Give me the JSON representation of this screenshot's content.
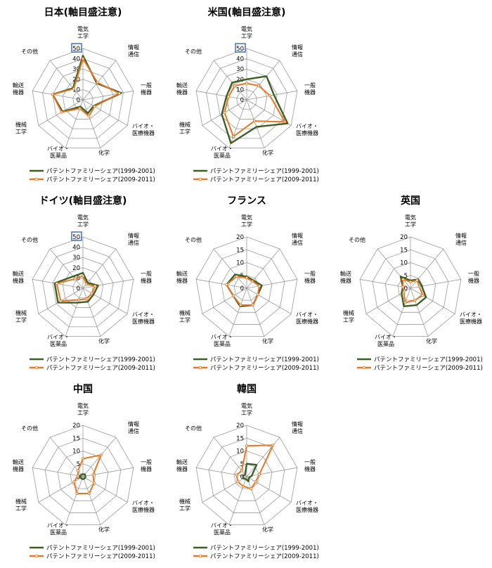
{
  "axis_labels": [
    [
      "電気",
      "工学"
    ],
    [
      "情報",
      "通信"
    ],
    [
      "一般",
      "機器"
    ],
    [
      "バイオ・",
      "医療機器"
    ],
    [
      "化学"
    ],
    [
      "バイオ・",
      "医薬品"
    ],
    [
      "機械",
      "工学"
    ],
    [
      "輸送",
      "機器"
    ],
    [
      "その他"
    ]
  ],
  "legend": [
    "パテントファミリーシェア(1999-2001)",
    "パテントファミリーシェア(2009-2011)"
  ],
  "colors": {
    "series1": "#3d5f25",
    "series2": "#e87722",
    "grid": "#9a9a9a",
    "highlight": "#4472c4"
  },
  "chart_data": [
    {
      "type": "radar",
      "title": "日本(軸目盛注意)",
      "rmax": 50,
      "ticks": [
        "0",
        "10",
        "20",
        "30",
        "40",
        "50"
      ],
      "tick_values": [
        0,
        10,
        20,
        30,
        40,
        50
      ],
      "highlight_max_tick": true,
      "categories": [
        "電気工学",
        "情報通信",
        "一般機器",
        "バイオ・医療機器",
        "化学",
        "バイオ・医薬品",
        "機械工学",
        "輸送機器",
        "その他"
      ],
      "series": [
        {
          "name": "パテントファミリーシェア(1999-2001)",
          "values": [
            43,
            21,
            38,
            12,
            14,
            7,
            23,
            30,
            15
          ]
        },
        {
          "name": "パテントファミリーシェア(2009-2011)",
          "values": [
            40,
            22,
            36,
            13,
            17,
            9,
            24,
            30,
            14
          ]
        }
      ]
    },
    {
      "type": "radar",
      "title": "米国(軸目盛注意)",
      "rmax": 50,
      "ticks": [
        "0",
        "10",
        "20",
        "30",
        "40",
        "50"
      ],
      "tick_values": [
        0,
        10,
        20,
        30,
        40,
        50
      ],
      "highlight_max_tick": true,
      "categories": [
        "電気工学",
        "情報通信",
        "一般機器",
        "バイオ・医療機器",
        "化学",
        "バイオ・医薬品",
        "機械工学",
        "輸送機器",
        "その他"
      ],
      "series": [
        {
          "name": "パテントファミリーシェア(1999-2001)",
          "values": [
            20,
            30,
            27,
            46,
            28,
            45,
            28,
            20,
            22
          ]
        },
        {
          "name": "パテントファミリーシェア(2009-2011)",
          "values": [
            16,
            18,
            23,
            43,
            22,
            38,
            25,
            18,
            18
          ]
        }
      ]
    },
    {
      "type": "radar",
      "title": "ドイツ(軸目盛注意)",
      "rmax": 50,
      "ticks": [
        "0",
        "10",
        "20",
        "30",
        "40",
        "50"
      ],
      "tick_values": [
        0,
        10,
        20,
        30,
        40,
        50
      ],
      "highlight_max_tick": true,
      "categories": [
        "電気工学",
        "情報通信",
        "一般機器",
        "バイオ・医療機器",
        "化学",
        "バイオ・医薬品",
        "機械工学",
        "輸送機器",
        "その他"
      ],
      "series": [
        {
          "name": "パテントファミリーシェア(1999-2001)",
          "values": [
            15,
            7,
            15,
            12,
            14,
            15,
            28,
            28,
            15
          ]
        },
        {
          "name": "パテントファミリーシェア(2009-2011)",
          "values": [
            12,
            5,
            12,
            10,
            11,
            12,
            25,
            26,
            12
          ]
        }
      ]
    },
    {
      "type": "radar",
      "title": "フランス",
      "rmax": 20,
      "ticks": [
        "0",
        "5",
        "10",
        "15",
        "20"
      ],
      "tick_values": [
        0,
        5,
        10,
        15,
        20
      ],
      "highlight_max_tick": false,
      "categories": [
        "電気工学",
        "情報通信",
        "一般機器",
        "バイオ・医療機器",
        "化学",
        "バイオ・医薬品",
        "機械工学",
        "輸送機器",
        "その他"
      ],
      "series": [
        {
          "name": "パテントファミリーシェア(1999-2001)",
          "values": [
            4.5,
            4,
            6,
            5,
            7,
            7.5,
            6,
            8,
            7
          ]
        },
        {
          "name": "パテントファミリーシェア(2009-2011)",
          "values": [
            4,
            3.5,
            5,
            5,
            7,
            7,
            6,
            8,
            6
          ]
        }
      ]
    },
    {
      "type": "radar",
      "title": "英国",
      "rmax": 20,
      "ticks": [
        "0",
        "5",
        "10",
        "15",
        "20"
      ],
      "tick_values": [
        0,
        5,
        10,
        15,
        20
      ],
      "highlight_max_tick": false,
      "categories": [
        "電気工学",
        "情報通信",
        "一般機器",
        "バイオ・医療機器",
        "化学",
        "バイオ・医薬品",
        "機械工学",
        "輸送機器",
        "その他"
      ],
      "series": [
        {
          "name": "パテントファミリーシェア(1999-2001)",
          "values": [
            3,
            4.5,
            4.5,
            7,
            7,
            7.5,
            4,
            3,
            6
          ]
        },
        {
          "name": "パテントファミリーシェア(2009-2011)",
          "values": [
            2.5,
            4,
            3.5,
            5.5,
            5,
            6,
            3,
            3,
            4.5
          ]
        }
      ]
    },
    {
      "type": "radar",
      "title": "中国",
      "rmax": 20,
      "ticks": [
        "0",
        "5",
        "10",
        "15",
        "20"
      ],
      "tick_values": [
        0,
        5,
        10,
        15,
        20
      ],
      "highlight_max_tick": false,
      "categories": [
        "電気工学",
        "情報通信",
        "一般機器",
        "バイオ・医療機器",
        "化学",
        "バイオ・医薬品",
        "機械工学",
        "輸送機器",
        "その他"
      ],
      "series": [
        {
          "name": "パテントファミリーシェア(1999-2001)",
          "values": [
            1,
            1.2,
            1,
            1,
            1,
            1,
            1,
            1,
            1
          ]
        },
        {
          "name": "パテントファミリーシェア(2009-2011)",
          "values": [
            7,
            11,
            4,
            5,
            7,
            7,
            4,
            2,
            3
          ]
        }
      ]
    },
    {
      "type": "radar",
      "title": "韓国",
      "rmax": 20,
      "ticks": [
        "0",
        "5",
        "10",
        "15",
        "20"
      ],
      "tick_values": [
        0,
        5,
        10,
        15,
        20
      ],
      "highlight_max_tick": false,
      "categories": [
        "電気工学",
        "情報通信",
        "一般機器",
        "バイオ・医療機器",
        "化学",
        "バイオ・医薬品",
        "機械工学",
        "輸送機器",
        "その他"
      ],
      "series": [
        {
          "name": "パテントファミリーシェア(1999-2001)",
          "values": [
            5,
            6,
            2,
            1,
            2,
            1,
            1.5,
            1.5,
            1
          ]
        },
        {
          "name": "パテントファミリーシェア(2009-2011)",
          "values": [
            12,
            16,
            5,
            4,
            5,
            4,
            4,
            4,
            3
          ]
        }
      ]
    }
  ]
}
